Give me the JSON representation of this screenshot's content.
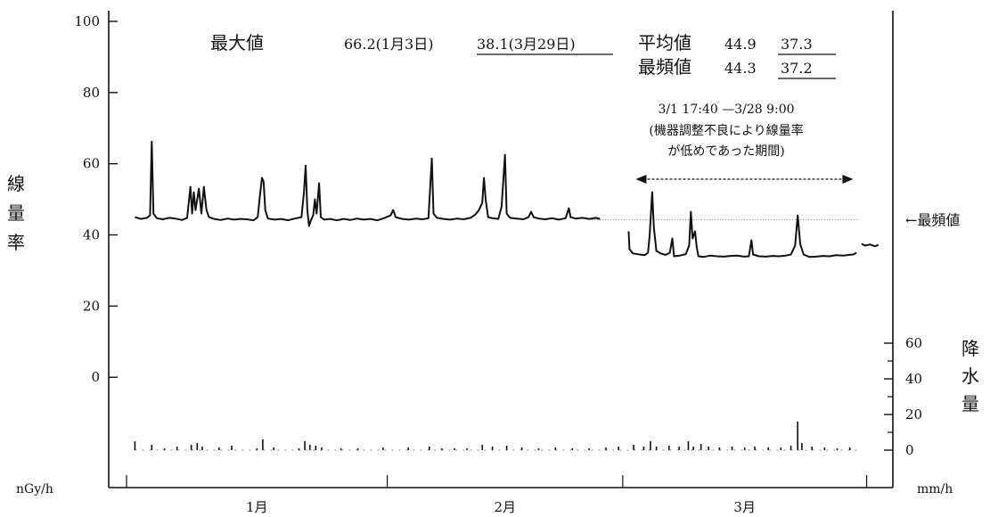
{
  "header": {
    "max_label": "最大値",
    "max_value_a": "66.2(1月3日)",
    "max_value_b": "38.1(3月29日)",
    "mean_label": "平均値",
    "mean_value_a": "44.9",
    "mean_value_b": "37.3",
    "mode_label": "最頻値",
    "mode_value_a": "44.3",
    "mode_value_b": "37.2"
  },
  "annotation": {
    "period": "3/1 17:40 —3/28 9:00",
    "note_line1": "(機器調整不良により線量率",
    "note_line2": "が低めであった期間)"
  },
  "mode_line_label": "←最頻値",
  "chart_data": {
    "type": "line",
    "y_axis": {
      "label_chars": [
        "線",
        "量",
        "率"
      ],
      "unit": "nGy/h",
      "ticks": [
        "100",
        "80",
        "60",
        "40",
        "20",
        "0"
      ],
      "range": [
        -31,
        103
      ]
    },
    "y2_axis": {
      "label_chars": [
        "降",
        "水",
        "量"
      ],
      "unit": "mm/h",
      "ticks": [
        "60",
        "40",
        "20",
        "0"
      ],
      "range": [
        0,
        75
      ]
    },
    "x_axis": {
      "labels": [
        "1月",
        "2月",
        "3月"
      ],
      "range_days": [
        0,
        89
      ]
    },
    "mode_value": 44.3,
    "period_days": [
      59.7,
      86.4
    ],
    "series": [
      {
        "name": "線量率",
        "axis": "left",
        "points": [
          [
            1,
            45
          ],
          [
            1.7,
            44.5
          ],
          [
            2.4,
            44.8
          ],
          [
            2.8,
            45.5
          ],
          [
            3,
            66.2
          ],
          [
            3.2,
            46
          ],
          [
            3.6,
            44.7
          ],
          [
            4.3,
            44.4
          ],
          [
            5.1,
            44.8
          ],
          [
            5.8,
            44.6
          ],
          [
            6.6,
            44.2
          ],
          [
            7.2,
            44.8
          ],
          [
            7.6,
            53.5
          ],
          [
            7.8,
            46
          ],
          [
            8,
            52
          ],
          [
            8.2,
            47
          ],
          [
            8.6,
            53
          ],
          [
            8.9,
            46
          ],
          [
            9.2,
            53.5
          ],
          [
            9.5,
            47
          ],
          [
            9.8,
            45
          ],
          [
            10.4,
            44.5
          ],
          [
            11.2,
            44.2
          ],
          [
            12,
            44.6
          ],
          [
            12.8,
            44.3
          ],
          [
            13.5,
            44.5
          ],
          [
            14.3,
            44.4
          ],
          [
            15.1,
            44.1
          ],
          [
            15.6,
            45
          ],
          [
            15.9,
            52
          ],
          [
            16.1,
            56
          ],
          [
            16.3,
            55
          ],
          [
            16.5,
            47
          ],
          [
            16.8,
            44.6
          ],
          [
            17.6,
            44.3
          ],
          [
            18.4,
            44.5
          ],
          [
            19.2,
            44.1
          ],
          [
            20,
            44.6
          ],
          [
            20.8,
            45
          ],
          [
            21.1,
            52
          ],
          [
            21.3,
            59.5
          ],
          [
            21.5,
            47
          ],
          [
            21.7,
            42.5
          ],
          [
            21.9,
            44
          ],
          [
            22.2,
            45.5
          ],
          [
            22.4,
            50
          ],
          [
            22.6,
            46
          ],
          [
            22.9,
            54.5
          ],
          [
            23.1,
            45
          ],
          [
            23.5,
            44.3
          ],
          [
            24.2,
            44.5
          ],
          [
            25,
            44.1
          ],
          [
            25.8,
            44.5
          ],
          [
            26.6,
            44.2
          ],
          [
            27.4,
            44.6
          ],
          [
            28.2,
            44.3
          ],
          [
            29,
            44.5
          ],
          [
            29.8,
            44.1
          ],
          [
            30.6,
            44.7
          ],
          [
            31.4,
            45.5
          ],
          [
            31.7,
            47
          ],
          [
            32,
            45
          ],
          [
            32.8,
            44.5
          ],
          [
            33.6,
            44.3
          ],
          [
            34.4,
            44.6
          ],
          [
            35.2,
            44.4
          ],
          [
            35.9,
            44.7
          ],
          [
            36.3,
            61.5
          ],
          [
            36.5,
            46
          ],
          [
            36.9,
            44.8
          ],
          [
            37.7,
            44.5
          ],
          [
            38.5,
            44.3
          ],
          [
            39.3,
            44.6
          ],
          [
            40.1,
            44.4
          ],
          [
            40.9,
            44.8
          ],
          [
            41.5,
            45.8
          ],
          [
            41.9,
            47
          ],
          [
            42.3,
            49
          ],
          [
            42.5,
            56
          ],
          [
            42.7,
            50
          ],
          [
            43,
            45
          ],
          [
            43.5,
            44.7
          ],
          [
            44.2,
            44.5
          ],
          [
            44.6,
            48
          ],
          [
            45,
            62.5
          ],
          [
            45.2,
            46
          ],
          [
            45.6,
            44.8
          ],
          [
            46.4,
            44.6
          ],
          [
            47.2,
            44.4
          ],
          [
            47.8,
            45
          ],
          [
            48.1,
            46.5
          ],
          [
            48.4,
            45
          ],
          [
            49,
            44.6
          ],
          [
            49.8,
            44.4
          ],
          [
            50.6,
            44.7
          ],
          [
            51.4,
            44.3
          ],
          [
            52.2,
            44.7
          ],
          [
            52.6,
            47.5
          ],
          [
            52.8,
            45
          ],
          [
            53.4,
            44.6
          ],
          [
            54.2,
            44.8
          ],
          [
            55,
            44.5
          ],
          [
            55.8,
            44.8
          ],
          [
            56.3,
            44.5
          ]
        ]
      },
      {
        "name": "線量率",
        "axis": "left",
        "points": [
          [
            59.7,
            41
          ],
          [
            59.8,
            36
          ],
          [
            60.2,
            34.8
          ],
          [
            61,
            34.5
          ],
          [
            61.6,
            34.3
          ],
          [
            62,
            35
          ],
          [
            62.2,
            40
          ],
          [
            62.5,
            52
          ],
          [
            62.7,
            42
          ],
          [
            63,
            35.5
          ],
          [
            63.6,
            34.7
          ],
          [
            64.1,
            34.4
          ],
          [
            64.6,
            35
          ],
          [
            64.9,
            39
          ],
          [
            65.1,
            34
          ],
          [
            65.8,
            34.2
          ],
          [
            66.5,
            34.6
          ],
          [
            66.9,
            37
          ],
          [
            67.1,
            46.5
          ],
          [
            67.3,
            39
          ],
          [
            67.6,
            41
          ],
          [
            67.8,
            36.5
          ],
          [
            68,
            34
          ],
          [
            68.6,
            33.8
          ],
          [
            69.4,
            34.2
          ],
          [
            70.2,
            34
          ],
          [
            71,
            33.9
          ],
          [
            71.8,
            34.1
          ],
          [
            72.6,
            34.2
          ],
          [
            73.4,
            33.9
          ],
          [
            74,
            34
          ],
          [
            74.3,
            38.5
          ],
          [
            74.5,
            34.5
          ],
          [
            75.2,
            34
          ],
          [
            76,
            33.9
          ],
          [
            76.8,
            34.1
          ],
          [
            77.6,
            34
          ],
          [
            78.4,
            34.2
          ],
          [
            79,
            34.5
          ],
          [
            79.5,
            37
          ],
          [
            79.8,
            45.5
          ],
          [
            80.1,
            37.5
          ],
          [
            80.5,
            34.5
          ],
          [
            81.2,
            33.8
          ],
          [
            82,
            33.9
          ],
          [
            82.8,
            34.1
          ],
          [
            83.6,
            34
          ],
          [
            84.4,
            34.3
          ],
          [
            85.2,
            34.2
          ],
          [
            86,
            34.4
          ],
          [
            86.4,
            34.5
          ],
          [
            86.8,
            35
          ]
        ]
      },
      {
        "name": "線量率",
        "axis": "left",
        "points": [
          [
            87.4,
            37.5
          ],
          [
            87.8,
            37
          ],
          [
            88.4,
            37.3
          ],
          [
            89,
            36.8
          ],
          [
            89.4,
            37.2
          ]
        ]
      },
      {
        "name": "降水量",
        "axis": "right",
        "spikes": [
          [
            1,
            5
          ],
          [
            3,
            3
          ],
          [
            4.5,
            1
          ],
          [
            6,
            2
          ],
          [
            7.7,
            3
          ],
          [
            8.4,
            4
          ],
          [
            9,
            2
          ],
          [
            11,
            1.5
          ],
          [
            12.5,
            2.5
          ],
          [
            15.5,
            1
          ],
          [
            16.2,
            6
          ],
          [
            17.5,
            1.5
          ],
          [
            20.5,
            1
          ],
          [
            21.2,
            5
          ],
          [
            21.8,
            3
          ],
          [
            22.5,
            2.5
          ],
          [
            23.2,
            1.5
          ],
          [
            25.5,
            1
          ],
          [
            27.5,
            1
          ],
          [
            30.5,
            1.5
          ],
          [
            33.5,
            1.5
          ],
          [
            36,
            2
          ],
          [
            37.5,
            1
          ],
          [
            39,
            1
          ],
          [
            40.5,
            1
          ],
          [
            42.3,
            3
          ],
          [
            43.5,
            2
          ],
          [
            45.2,
            2.5
          ],
          [
            47,
            1.5
          ],
          [
            49,
            1
          ],
          [
            51,
            1.5
          ],
          [
            53,
            1
          ],
          [
            55,
            1
          ],
          [
            57,
            1.5
          ],
          [
            58.5,
            2
          ],
          [
            60.3,
            3
          ],
          [
            61.5,
            2
          ],
          [
            62.3,
            5
          ],
          [
            63,
            2
          ],
          [
            64.5,
            2.5
          ],
          [
            65.7,
            2
          ],
          [
            66.8,
            5
          ],
          [
            67.4,
            2
          ],
          [
            68.3,
            3.5
          ],
          [
            69.2,
            2
          ],
          [
            70.5,
            1.5
          ],
          [
            72,
            2
          ],
          [
            73.5,
            1.5
          ],
          [
            74.7,
            2
          ],
          [
            76.3,
            1.5
          ],
          [
            77.8,
            1.5
          ],
          [
            79,
            2.5
          ],
          [
            79.8,
            16
          ],
          [
            80.3,
            4
          ],
          [
            81.5,
            2
          ],
          [
            83,
            1.5
          ],
          [
            84.5,
            1
          ],
          [
            86,
            1.5
          ]
        ]
      }
    ]
  }
}
